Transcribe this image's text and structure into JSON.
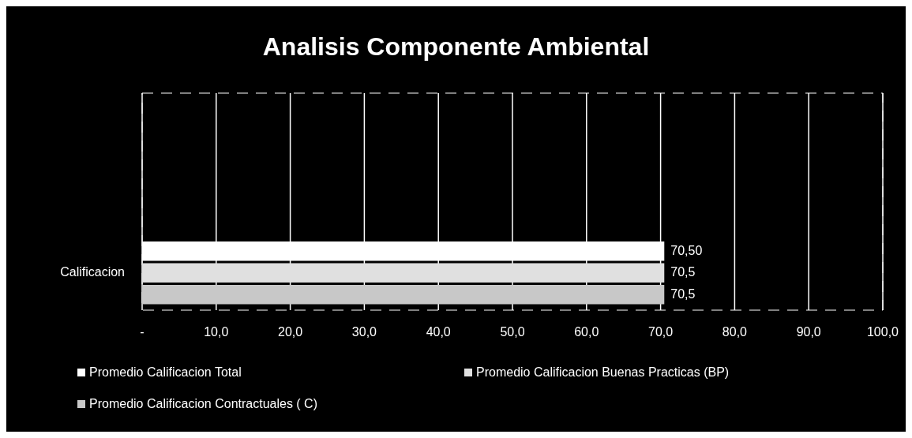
{
  "chart_data": {
    "type": "bar",
    "orientation": "horizontal",
    "title": "Analisis Componente Ambiental",
    "categories": [
      "Calificacion"
    ],
    "series": [
      {
        "name": "Promedio Calificacion Total",
        "color": "#ffffff",
        "values": [
          70.5
        ],
        "value_labels": [
          "70,50"
        ]
      },
      {
        "name": "Promedio Calificacion Buenas Practicas  (BP)",
        "color": "#e0e0e0",
        "values": [
          70.5
        ],
        "value_labels": [
          "70,5"
        ]
      },
      {
        "name": "Promedio Calificacion Contractuales ( C)",
        "color": "#c8c8c8",
        "values": [
          70.5
        ],
        "value_labels": [
          "70,5"
        ]
      }
    ],
    "xlim": [
      0,
      100
    ],
    "xticks": [
      {
        "value": 0,
        "label": "-"
      },
      {
        "value": 10,
        "label": "10,0"
      },
      {
        "value": 20,
        "label": "20,0"
      },
      {
        "value": 30,
        "label": "30,0"
      },
      {
        "value": 40,
        "label": "40,0"
      },
      {
        "value": 50,
        "label": "50,0"
      },
      {
        "value": 60,
        "label": "60,0"
      },
      {
        "value": 70,
        "label": "70,0"
      },
      {
        "value": 80,
        "label": "80,0"
      },
      {
        "value": 90,
        "label": "90,0"
      },
      {
        "value": 100,
        "label": "100,0"
      }
    ],
    "grid": "x",
    "legend": "bottom"
  }
}
